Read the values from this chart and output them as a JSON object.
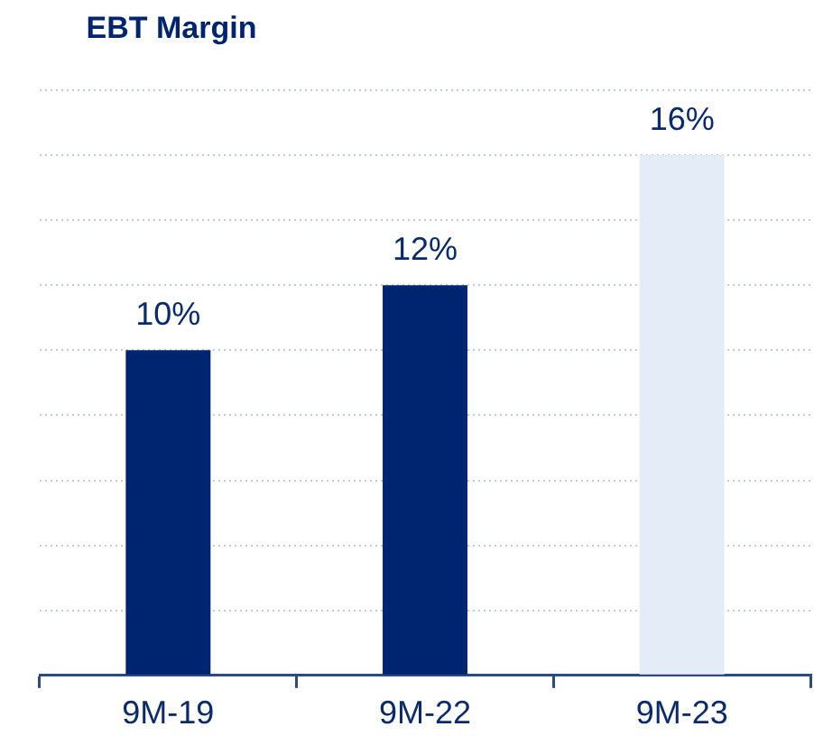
{
  "chart_data": {
    "type": "bar",
    "title": "EBT Margin",
    "categories": [
      "9M-19",
      "9M-22",
      "9M-23"
    ],
    "values": [
      10,
      12,
      16
    ],
    "colors": [
      "#002570",
      "#002570",
      "#e4ecf7"
    ],
    "value_labels": [
      "10%",
      "12%",
      "16%"
    ],
    "ylim": [
      0,
      18
    ],
    "yticks": [
      {
        "value": 0,
        "label": null
      },
      {
        "value": 2,
        "label": null
      },
      {
        "value": 4,
        "label": null
      },
      {
        "value": 6,
        "label": null
      },
      {
        "value": 8,
        "label": null
      },
      {
        "value": 10,
        "label": null
      },
      {
        "value": 12,
        "label": null
      },
      {
        "value": 14,
        "label": null
      },
      {
        "value": 16,
        "label": null
      },
      {
        "value": 18,
        "label": null
      }
    ],
    "grid": "y",
    "tick_labels": "x",
    "legend": false
  }
}
